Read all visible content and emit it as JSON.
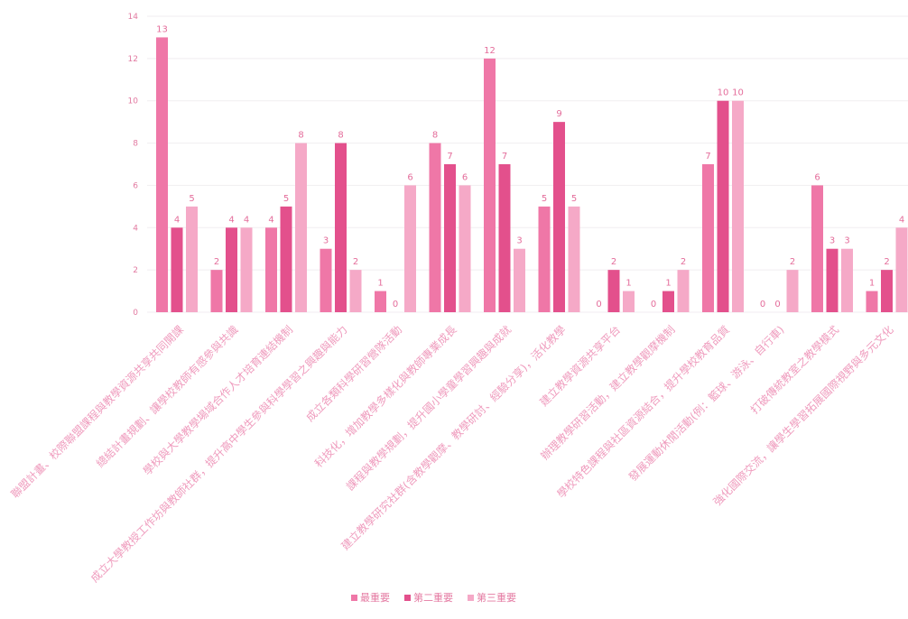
{
  "chart_data": {
    "type": "bar",
    "categories": [
      "聯盟計畫、校際聯盟課程與教學資源共享共同開課",
      "總結計畫規劃、讓學校教師有感參與共識",
      "學校與大學教學場域合作人才培育連結機制",
      "成立大學教授工作坊與教師社群，提升高中學生參與科學學習之興趣與能力",
      "成立各類科學研習營隊活動",
      "科技化，增加教學多樣化與教師專業成長",
      "課程與教學規劃，提升國小學童學習興趣與成就",
      "建立教學研究社群(含教學觀摩、教學研討、經驗分享)，活化教學",
      "建立教學資源共享平台",
      "辦理教學研習活動，建立教學觀摩機制",
      "學校特色課程與社區資源結合，提升學校教育品質",
      "發展運動休閒活動(例：籃球、游泳、自行車)",
      "打破傳統教室之教學模式",
      "強化國際交流，讓學生學習拓展國際視野與多元文化"
    ],
    "series": [
      {
        "name": "最重要",
        "color": "#ef77a7",
        "values": [
          13,
          2,
          4,
          3,
          1,
          8,
          12,
          5,
          0,
          0,
          7,
          0,
          6,
          1
        ]
      },
      {
        "name": "第二重要",
        "color": "#e3508c",
        "values": [
          4,
          4,
          5,
          8,
          0,
          7,
          7,
          9,
          2,
          1,
          10,
          0,
          3,
          2
        ]
      },
      {
        "name": "第三重要",
        "color": "#f5a9c7",
        "values": [
          5,
          4,
          8,
          2,
          6,
          6,
          3,
          5,
          1,
          2,
          10,
          2,
          3,
          4
        ]
      }
    ],
    "yticks": [
      0,
      2,
      4,
      6,
      8,
      10,
      12,
      14
    ],
    "ylim": [
      0,
      14
    ],
    "grid": true,
    "data_labels": true,
    "legend": "bottom-center"
  }
}
